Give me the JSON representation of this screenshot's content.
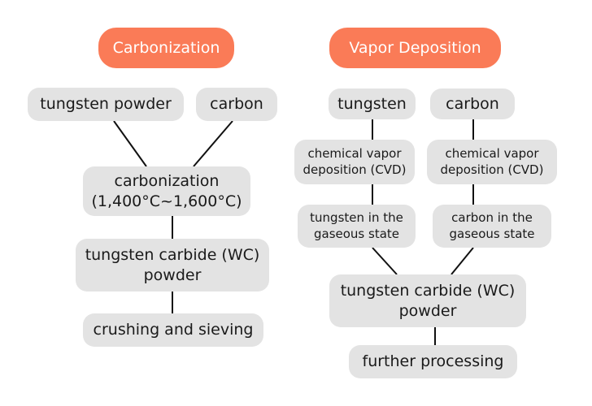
{
  "carbonization": {
    "header": "Carbonization",
    "tungsten_powder": "tungsten powder",
    "carbon": "carbon",
    "process_line1": "carbonization",
    "process_line2": "(1,400°C~1,600°C)",
    "product_line1": "tungsten carbide (WC)",
    "product_line2": "powder",
    "final": "crushing and sieving"
  },
  "vapor_deposition": {
    "header": "Vapor Deposition",
    "tungsten": "tungsten",
    "carbon": "carbon",
    "cvd_left_line1": "chemical vapor",
    "cvd_left_line2": "deposition (CVD)",
    "cvd_right_line1": "chemical vapor",
    "cvd_right_line2": "deposition (CVD)",
    "gas_tungsten_line1": "tungsten in the",
    "gas_tungsten_line2": "gaseous state",
    "gas_carbon_line1": "carbon in the",
    "gas_carbon_line2": "gaseous state",
    "product_line1": "tungsten carbide (WC)",
    "product_line2": "powder",
    "final": "further processing"
  },
  "colors": {
    "header_fill": "#fa7b57",
    "node_fill": "#e3e3e3",
    "connector": "#111111"
  }
}
